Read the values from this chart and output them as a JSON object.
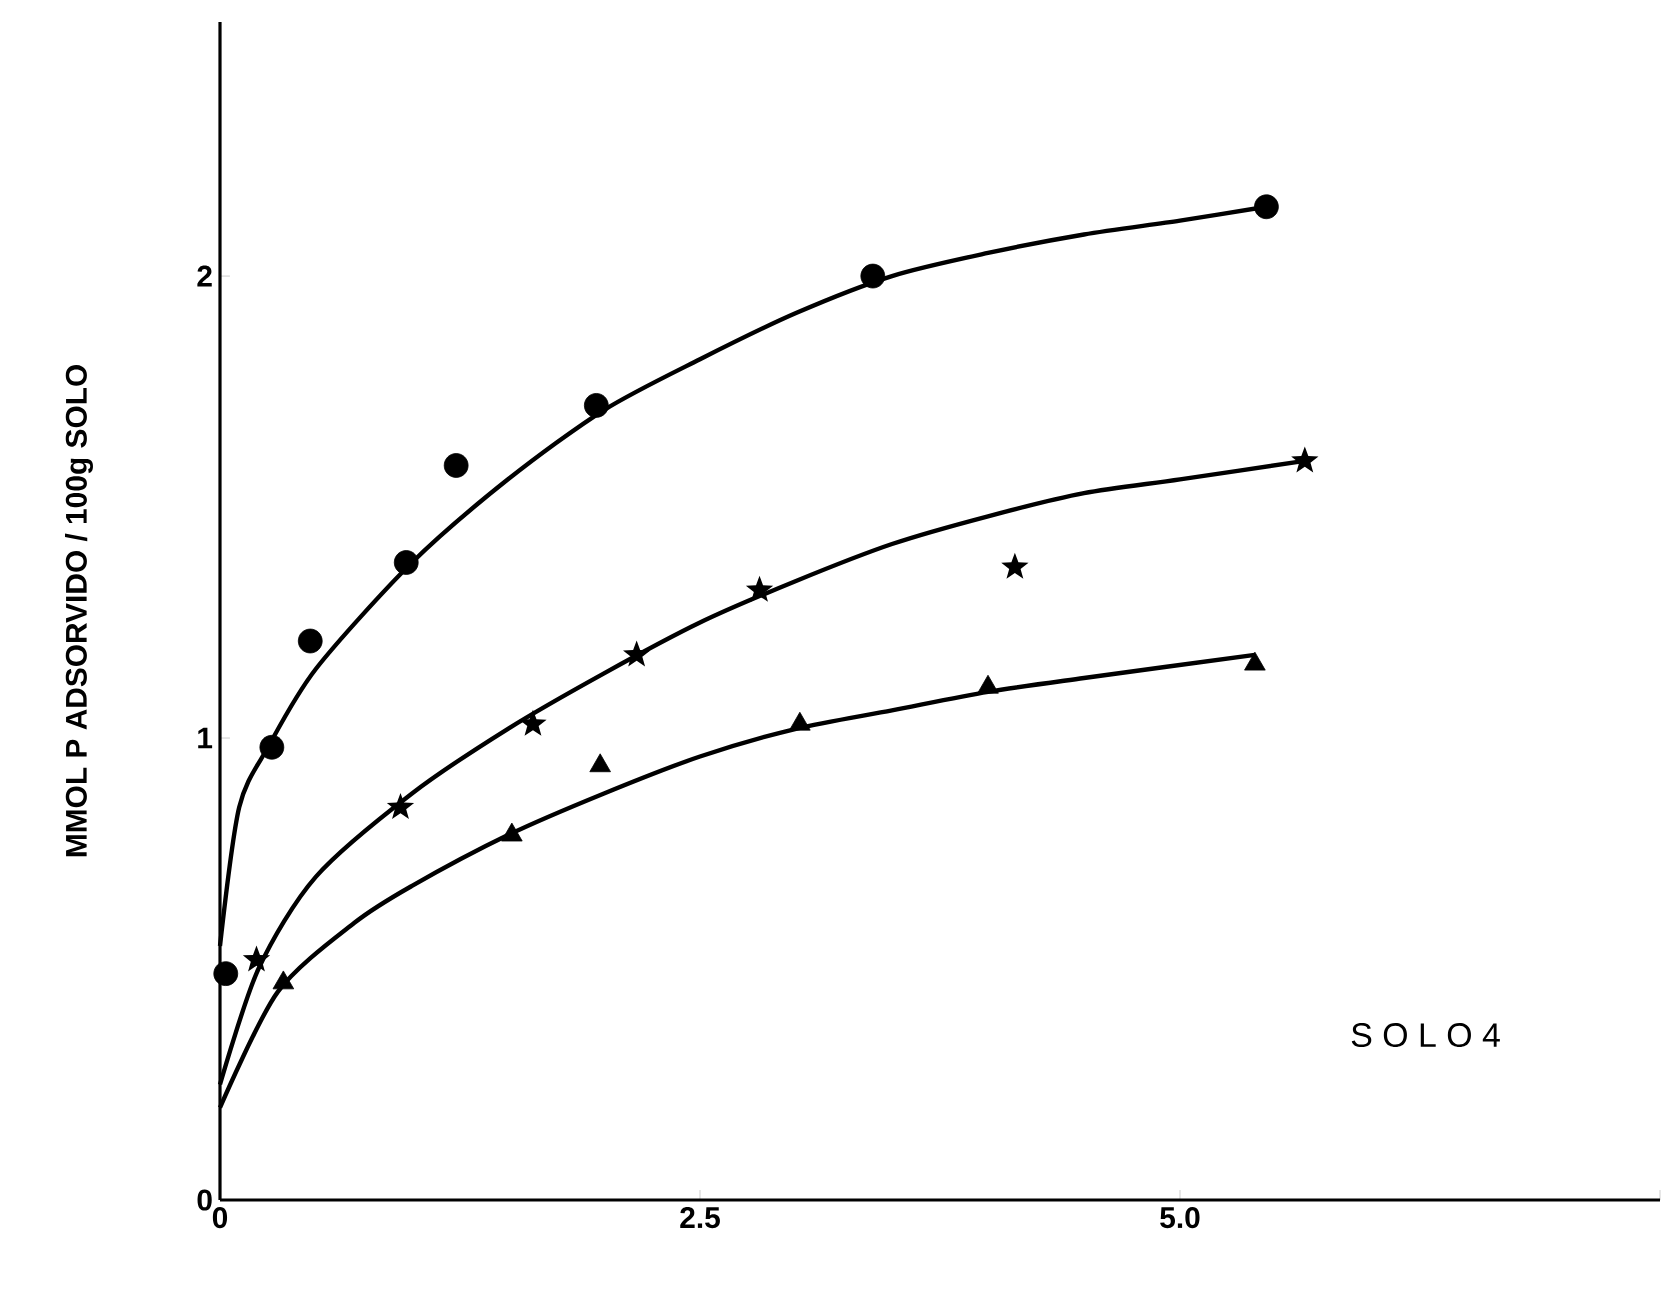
{
  "chart_data": {
    "type": "scatter",
    "ylabel": "MMOL P ADSORVIDO / 100g SOLO",
    "xlim": [
      0,
      7.5
    ],
    "ylim": [
      0,
      2.55
    ],
    "xticks": [
      0,
      2.5,
      {
        "value": 5.0,
        "label": "5.0"
      },
      {
        "value": 7.5,
        "label": null
      }
    ],
    "yticks": [
      0,
      1,
      2
    ],
    "annotations": [
      "S O L O  4"
    ],
    "series": [
      {
        "marker": "circle",
        "color": "#000000",
        "x": [
          0.03,
          0.27,
          0.47,
          0.97,
          1.23,
          1.96,
          3.4,
          5.45
        ],
        "values": [
          0.49,
          0.98,
          1.21,
          1.38,
          1.59,
          1.72,
          2.0,
          2.15
        ]
      },
      {
        "marker": "star",
        "color": "#000000",
        "x": [
          0.19,
          0.94,
          1.63,
          2.17,
          2.81,
          4.14,
          5.65
        ],
        "values": [
          0.52,
          0.85,
          1.03,
          1.18,
          1.32,
          1.37,
          1.6
        ]
      },
      {
        "marker": "triangle",
        "color": "#000000",
        "x": [
          0.33,
          1.52,
          1.98,
          3.02,
          4.0,
          5.39
        ],
        "values": [
          0.47,
          0.79,
          0.94,
          1.03,
          1.11,
          1.16
        ]
      },
      {
        "type": "line",
        "marker": "none",
        "line_style": "solid",
        "color": "#000000",
        "x": [
          0,
          0.1,
          0.25,
          0.5,
          1,
          1.5,
          2,
          2.5,
          3,
          3.5,
          4,
          4.5,
          5,
          5.45
        ],
        "values": [
          0.55,
          0.85,
          0.98,
          1.15,
          1.38,
          1.56,
          1.71,
          1.82,
          1.92,
          2.0,
          2.05,
          2.09,
          2.12,
          2.15
        ]
      },
      {
        "type": "line",
        "marker": "none",
        "line_style": "solid",
        "color": "#000000",
        "x": [
          0,
          0.2,
          0.5,
          1,
          1.5,
          2,
          2.5,
          3,
          3.5,
          4,
          4.5,
          5,
          5.65
        ],
        "values": [
          0.25,
          0.5,
          0.7,
          0.88,
          1.02,
          1.14,
          1.25,
          1.34,
          1.42,
          1.48,
          1.53,
          1.56,
          1.6
        ]
      },
      {
        "type": "line",
        "marker": "none",
        "line_style": "solid",
        "color": "#000000",
        "x": [
          0,
          0.3,
          0.7,
          1,
          1.5,
          2,
          2.5,
          3,
          3.5,
          4,
          4.5,
          5.39
        ],
        "values": [
          0.2,
          0.45,
          0.6,
          0.68,
          0.79,
          0.88,
          0.96,
          1.02,
          1.06,
          1.1,
          1.13,
          1.18
        ]
      }
    ]
  }
}
